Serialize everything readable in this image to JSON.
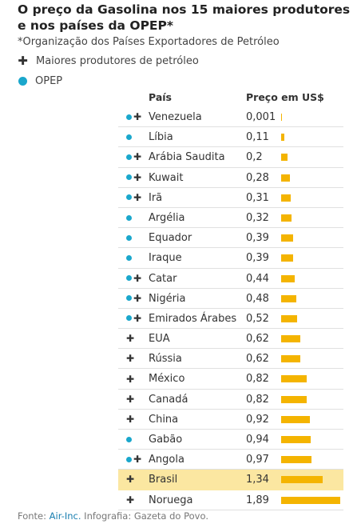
{
  "header": {
    "title": "O preço da Gasolina nos 15 maiores produtores e nos países da OPEP*",
    "subtitle": "*Organização dos Países Exportadores de Petróleo"
  },
  "legend": {
    "producers_label": "Maiores produtores de petróleo",
    "opep_label": "OPEP",
    "dot_color": "#1aa7cc",
    "plus_symbol": "✚"
  },
  "table": {
    "col_country": "País",
    "col_price": "Preço em US$"
  },
  "colors": {
    "bar": "#f4b400",
    "highlight": "#fbe7a1",
    "opep": "#1aa7cc"
  },
  "chart_data": {
    "type": "bar",
    "title": "O preço da Gasolina nos 15 maiores produtores e nos países da OPEP*",
    "value_label": "Preço em US$",
    "xlim": [
      0,
      1.89
    ],
    "highlighted": "Brasil",
    "rows": [
      {
        "country": "Venezuela",
        "value": 0.001,
        "label": "0,001",
        "opep": true,
        "producer": true
      },
      {
        "country": "Líbia",
        "value": 0.11,
        "label": "0,11",
        "opep": true,
        "producer": false
      },
      {
        "country": "Arábia Saudita",
        "value": 0.2,
        "label": "0,2",
        "opep": true,
        "producer": true
      },
      {
        "country": "Kuwait",
        "value": 0.28,
        "label": "0,28",
        "opep": true,
        "producer": true
      },
      {
        "country": "Irã",
        "value": 0.31,
        "label": "0,31",
        "opep": true,
        "producer": true
      },
      {
        "country": "Argélia",
        "value": 0.32,
        "label": "0,32",
        "opep": true,
        "producer": false
      },
      {
        "country": "Equador",
        "value": 0.39,
        "label": "0,39",
        "opep": true,
        "producer": false
      },
      {
        "country": "Iraque",
        "value": 0.39,
        "label": "0,39",
        "opep": true,
        "producer": false
      },
      {
        "country": "Catar",
        "value": 0.44,
        "label": "0,44",
        "opep": true,
        "producer": true
      },
      {
        "country": "Nigéria",
        "value": 0.48,
        "label": "0,48",
        "opep": true,
        "producer": true
      },
      {
        "country": "Emirados Árabes",
        "value": 0.52,
        "label": "0,52",
        "opep": true,
        "producer": true
      },
      {
        "country": "EUA",
        "value": 0.62,
        "label": "0,62",
        "opep": false,
        "producer": true
      },
      {
        "country": "Rússia",
        "value": 0.62,
        "label": "0,62",
        "opep": false,
        "producer": true
      },
      {
        "country": "México",
        "value": 0.82,
        "label": "0,82",
        "opep": false,
        "producer": true
      },
      {
        "country": "Canadá",
        "value": 0.82,
        "label": "0,82",
        "opep": false,
        "producer": true
      },
      {
        "country": "China",
        "value": 0.92,
        "label": "0,92",
        "opep": false,
        "producer": true
      },
      {
        "country": "Gabão",
        "value": 0.94,
        "label": "0,94",
        "opep": true,
        "producer": false
      },
      {
        "country": "Angola",
        "value": 0.97,
        "label": "0,97",
        "opep": true,
        "producer": true
      },
      {
        "country": "Brasil",
        "value": 1.34,
        "label": "1,34",
        "opep": false,
        "producer": true
      },
      {
        "country": "Noruega",
        "value": 1.89,
        "label": "1,89",
        "opep": false,
        "producer": true
      }
    ]
  },
  "footer": {
    "source_prefix": "Fonte: ",
    "source_link": "Air-Inc.",
    "credits": " Infografia: Gazeta do Povo."
  }
}
